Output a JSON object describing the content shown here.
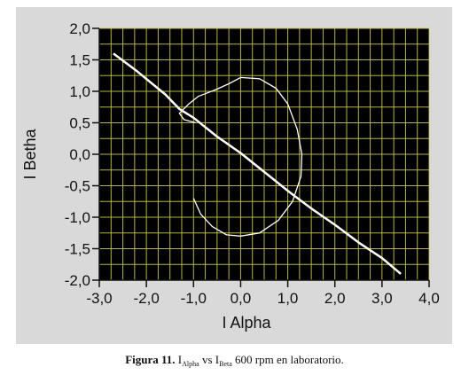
{
  "caption": {
    "label": "Figura 11.",
    "i1": "I",
    "sub1": "Alpha",
    "vs": " vs ",
    "i2": "I",
    "sub2": "Beta",
    "rest": " 600 rpm en laboratorio."
  },
  "chart_data": {
    "type": "line",
    "xlabel": "I Alpha",
    "ylabel": "I Betha",
    "xlim": [
      -3.0,
      4.0
    ],
    "ylim": [
      -2.0,
      2.0
    ],
    "x_ticks": [
      "-3,0",
      "-2,0",
      "-1,0",
      "0,0",
      "1,0",
      "2,0",
      "3,0",
      "4,0"
    ],
    "y_ticks": [
      "2,0",
      "1,5",
      "1,0",
      "0,5",
      "0,0",
      "-0,5",
      "-1,0",
      "-1,5",
      "-2,0"
    ],
    "grid": true,
    "colors": {
      "plot_bg": "#000000",
      "grid": "#c9c93a",
      "trace": "#ffffff",
      "panel": "#d9d9d9"
    },
    "series": [
      {
        "values": [
          [
            -2.7,
            1.6
          ],
          [
            -2.2,
            1.32
          ],
          [
            -1.6,
            0.95
          ],
          [
            -1.3,
            0.72
          ],
          [
            -1.0,
            0.58
          ],
          [
            -0.5,
            0.28
          ],
          [
            0.0,
            0.02
          ],
          [
            0.5,
            -0.28
          ],
          [
            1.0,
            -0.58
          ],
          [
            1.5,
            -0.86
          ],
          [
            2.0,
            -1.12
          ],
          [
            2.5,
            -1.4
          ],
          [
            3.0,
            -1.65
          ],
          [
            3.4,
            -1.9
          ]
        ]
      },
      {
        "values": [
          [
            -1.0,
            -0.7
          ],
          [
            -0.85,
            -0.95
          ],
          [
            -0.6,
            -1.15
          ],
          [
            -0.3,
            -1.28
          ],
          [
            0.0,
            -1.3
          ],
          [
            0.4,
            -1.25
          ],
          [
            0.8,
            -1.05
          ],
          [
            1.1,
            -0.75
          ],
          [
            1.28,
            -0.35
          ],
          [
            1.3,
            0.0
          ],
          [
            1.2,
            0.4
          ],
          [
            1.0,
            0.8
          ],
          [
            0.75,
            1.05
          ],
          [
            0.4,
            1.2
          ],
          [
            0.0,
            1.22
          ],
          [
            -0.25,
            1.12
          ],
          [
            -0.55,
            1.02
          ],
          [
            -0.9,
            0.92
          ],
          [
            -1.1,
            0.8
          ],
          [
            -1.3,
            0.65
          ],
          [
            -1.2,
            0.55
          ],
          [
            -0.95,
            0.5
          ]
        ]
      }
    ]
  }
}
